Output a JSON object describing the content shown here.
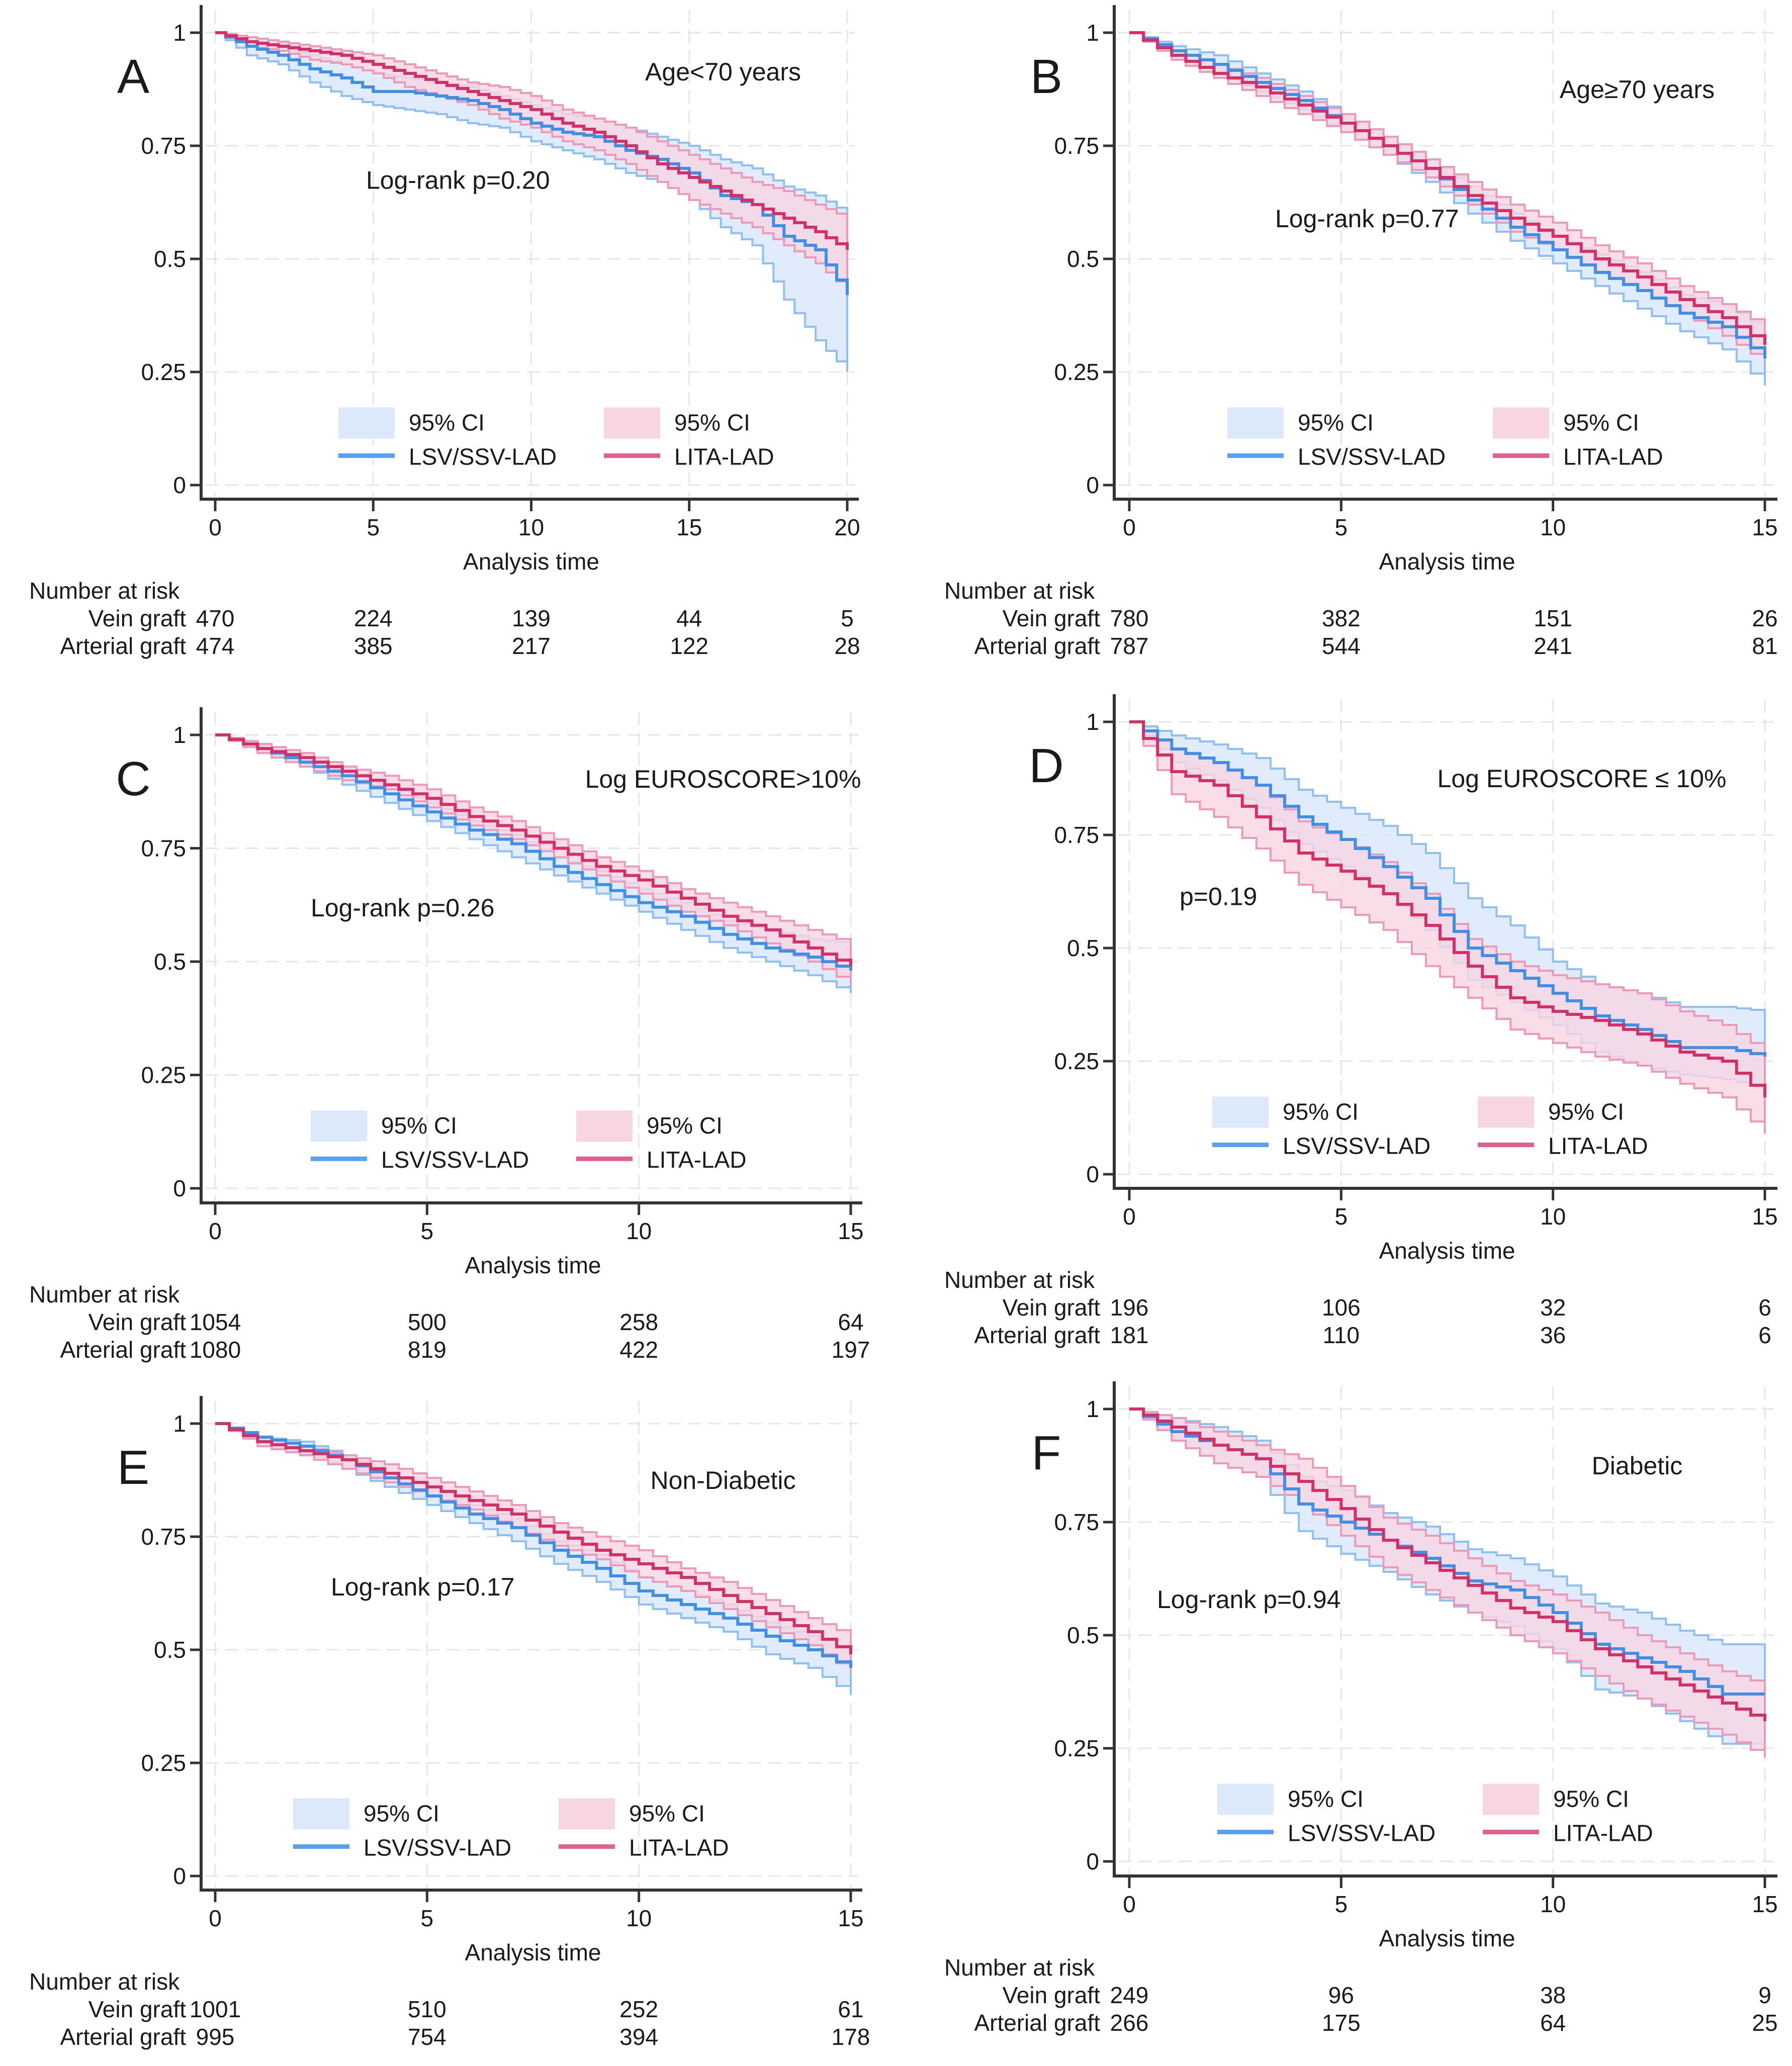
{
  "figure": {
    "colors": {
      "vein_line": "#3f8fe8",
      "vein_ci": "#dbe9fb",
      "arterial_line": "#d42f66",
      "arterial_ci": "#f7d6e2",
      "legend_arterial_line": "#e0608f"
    },
    "common": {
      "xlabel": "Analysis time",
      "risk_header": "Number at risk",
      "risk_row_labels": [
        "Vein graft",
        "Arterial graft"
      ],
      "legend": {
        "vein_ci": "95% CI",
        "arterial_ci": "95% CI",
        "vein_line": "LSV/SSV-LAD",
        "arterial_line": "LITA-LAD"
      },
      "yticks": [
        "0",
        "0.25",
        "0.5",
        "0.75",
        "1"
      ]
    }
  },
  "chart_data": [
    {
      "panel": "A",
      "type": "line",
      "title": "Age<70 years",
      "annotation": "Log-rank p=0.20",
      "xlabel": "Analysis time",
      "ylabel": "",
      "xlim": [
        0,
        20
      ],
      "ylim": [
        0,
        1
      ],
      "xticks": [
        0,
        5,
        10,
        15,
        20
      ],
      "yticks": [
        0,
        0.25,
        0.5,
        0.75,
        1
      ],
      "grid": true,
      "legend_position": "bottom-center",
      "x": [
        0,
        1,
        2,
        3,
        4,
        5,
        6,
        7,
        8,
        9,
        10,
        11,
        12,
        13,
        14,
        15,
        16,
        17,
        18,
        19,
        20
      ],
      "series": [
        {
          "name": "LSV/SSV-LAD",
          "values": [
            1,
            0.97,
            0.95,
            0.92,
            0.9,
            0.87,
            0.87,
            0.86,
            0.85,
            0.83,
            0.8,
            0.78,
            0.77,
            0.74,
            0.72,
            0.69,
            0.64,
            0.62,
            0.55,
            0.52,
            0.42
          ],
          "ci_upper": [
            1,
            0.98,
            0.97,
            0.95,
            0.93,
            0.91,
            0.9,
            0.89,
            0.88,
            0.86,
            0.84,
            0.82,
            0.81,
            0.79,
            0.77,
            0.75,
            0.72,
            0.7,
            0.66,
            0.64,
            0.6
          ],
          "ci_lower": [
            1,
            0.95,
            0.93,
            0.89,
            0.86,
            0.84,
            0.83,
            0.82,
            0.8,
            0.79,
            0.76,
            0.74,
            0.72,
            0.69,
            0.67,
            0.63,
            0.57,
            0.53,
            0.41,
            0.32,
            0.25
          ]
        },
        {
          "name": "LITA-LAD",
          "values": [
            1,
            0.98,
            0.97,
            0.96,
            0.95,
            0.93,
            0.91,
            0.89,
            0.87,
            0.85,
            0.83,
            0.8,
            0.78,
            0.75,
            0.71,
            0.68,
            0.65,
            0.62,
            0.59,
            0.56,
            0.52
          ],
          "ci_upper": [
            1,
            0.99,
            0.98,
            0.97,
            0.96,
            0.95,
            0.93,
            0.91,
            0.89,
            0.88,
            0.86,
            0.83,
            0.81,
            0.79,
            0.76,
            0.73,
            0.7,
            0.67,
            0.65,
            0.62,
            0.59
          ],
          "ci_lower": [
            1,
            0.97,
            0.96,
            0.94,
            0.93,
            0.91,
            0.88,
            0.86,
            0.84,
            0.81,
            0.79,
            0.76,
            0.74,
            0.71,
            0.67,
            0.63,
            0.6,
            0.57,
            0.53,
            0.49,
            0.43
          ]
        }
      ],
      "number_at_risk": {
        "times": [
          0,
          5,
          10,
          15,
          20
        ],
        "vein": [
          "470",
          "224",
          "139",
          "44",
          "5"
        ],
        "arterial": [
          "474",
          "385",
          "217",
          "122",
          "28"
        ]
      }
    },
    {
      "panel": "B",
      "type": "line",
      "title": "Age≥70 years",
      "annotation": "Log-rank p=0.77",
      "xlabel": "Analysis time",
      "ylabel": "",
      "xlim": [
        0,
        15
      ],
      "ylim": [
        0,
        1
      ],
      "xticks": [
        0,
        5,
        10,
        15
      ],
      "yticks": [
        0,
        0.25,
        0.5,
        0.75,
        1
      ],
      "grid": true,
      "legend_position": "bottom-center",
      "x": [
        0,
        1,
        2,
        3,
        4,
        5,
        6,
        7,
        8,
        9,
        10,
        11,
        12,
        13,
        14,
        15
      ],
      "series": [
        {
          "name": "LSV/SSV-LAD",
          "values": [
            1,
            0.96,
            0.93,
            0.89,
            0.85,
            0.8,
            0.75,
            0.7,
            0.63,
            0.57,
            0.52,
            0.47,
            0.43,
            0.38,
            0.35,
            0.28
          ],
          "ci_upper": [
            1,
            0.97,
            0.95,
            0.91,
            0.87,
            0.82,
            0.77,
            0.72,
            0.66,
            0.6,
            0.55,
            0.51,
            0.47,
            0.42,
            0.4,
            0.34
          ],
          "ci_lower": [
            1,
            0.95,
            0.91,
            0.87,
            0.83,
            0.78,
            0.73,
            0.67,
            0.6,
            0.54,
            0.49,
            0.44,
            0.39,
            0.34,
            0.3,
            0.22
          ]
        },
        {
          "name": "LITA-LAD",
          "values": [
            1,
            0.95,
            0.91,
            0.88,
            0.84,
            0.8,
            0.75,
            0.7,
            0.64,
            0.59,
            0.55,
            0.5,
            0.46,
            0.41,
            0.37,
            0.31
          ],
          "ci_upper": [
            1,
            0.96,
            0.93,
            0.9,
            0.86,
            0.82,
            0.77,
            0.72,
            0.67,
            0.62,
            0.58,
            0.53,
            0.49,
            0.44,
            0.4,
            0.35
          ],
          "ci_lower": [
            1,
            0.94,
            0.9,
            0.86,
            0.82,
            0.78,
            0.73,
            0.68,
            0.62,
            0.56,
            0.52,
            0.47,
            0.43,
            0.38,
            0.33,
            0.27
          ]
        }
      ],
      "number_at_risk": {
        "times": [
          0,
          5,
          10,
          15
        ],
        "vein": [
          "780",
          "382",
          "151",
          "26"
        ],
        "arterial": [
          "787",
          "544",
          "241",
          "81"
        ]
      }
    },
    {
      "panel": "C",
      "type": "line",
      "title": "Log EUROSCORE>10%",
      "annotation": "Log-rank p=0.26",
      "xlabel": "Analysis time",
      "ylabel": "",
      "xlim": [
        0,
        15
      ],
      "ylim": [
        0,
        1
      ],
      "xticks": [
        0,
        5,
        10,
        15
      ],
      "yticks": [
        0,
        0.25,
        0.5,
        0.75,
        1
      ],
      "grid": true,
      "legend_position": "bottom-center",
      "x": [
        0,
        1,
        2,
        3,
        4,
        5,
        6,
        7,
        8,
        9,
        10,
        11,
        12,
        13,
        14,
        15
      ],
      "series": [
        {
          "name": "LSV/SSV-LAD",
          "values": [
            1,
            0.97,
            0.94,
            0.91,
            0.87,
            0.83,
            0.79,
            0.76,
            0.71,
            0.67,
            0.63,
            0.6,
            0.56,
            0.53,
            0.51,
            0.48
          ],
          "ci_upper": [
            1,
            0.98,
            0.95,
            0.92,
            0.89,
            0.85,
            0.81,
            0.78,
            0.73,
            0.7,
            0.66,
            0.63,
            0.59,
            0.57,
            0.55,
            0.54
          ],
          "ci_lower": [
            1,
            0.96,
            0.93,
            0.89,
            0.85,
            0.81,
            0.77,
            0.73,
            0.69,
            0.65,
            0.61,
            0.57,
            0.53,
            0.5,
            0.47,
            0.43
          ]
        },
        {
          "name": "LITA-LAD",
          "values": [
            1,
            0.97,
            0.95,
            0.92,
            0.89,
            0.86,
            0.82,
            0.79,
            0.75,
            0.71,
            0.68,
            0.64,
            0.6,
            0.57,
            0.53,
            0.49
          ],
          "ci_upper": [
            1,
            0.98,
            0.96,
            0.93,
            0.91,
            0.88,
            0.84,
            0.81,
            0.77,
            0.73,
            0.7,
            0.66,
            0.63,
            0.6,
            0.57,
            0.54
          ],
          "ci_lower": [
            1,
            0.96,
            0.93,
            0.9,
            0.88,
            0.84,
            0.8,
            0.77,
            0.73,
            0.69,
            0.65,
            0.61,
            0.58,
            0.54,
            0.5,
            0.45
          ]
        }
      ],
      "number_at_risk": {
        "times": [
          0,
          5,
          10,
          15
        ],
        "vein": [
          "1054",
          "500",
          "258",
          "64"
        ],
        "arterial": [
          "1080",
          "819",
          "422",
          "197"
        ]
      }
    },
    {
      "panel": "D",
      "type": "line",
      "title": "Log EUROSCORE ≤ 10%",
      "annotation": "p=0.19",
      "xlabel": "Analysis time",
      "ylabel": "",
      "xlim": [
        0,
        15
      ],
      "ylim": [
        0,
        1
      ],
      "xticks": [
        0,
        5,
        10,
        15
      ],
      "yticks": [
        0,
        0.25,
        0.5,
        0.75,
        1
      ],
      "grid": true,
      "legend_position": "bottom-center",
      "x": [
        0,
        1,
        2,
        3,
        4,
        5,
        6,
        7,
        8,
        9,
        10,
        11,
        12,
        13,
        14,
        15
      ],
      "series": [
        {
          "name": "LSV/SSV-LAD",
          "values": [
            1,
            0.94,
            0.91,
            0.86,
            0.79,
            0.74,
            0.68,
            0.61,
            0.5,
            0.45,
            0.4,
            0.35,
            0.32,
            0.28,
            0.28,
            0.26
          ],
          "ci_upper": [
            1,
            0.97,
            0.95,
            0.92,
            0.85,
            0.81,
            0.77,
            0.71,
            0.61,
            0.55,
            0.47,
            0.42,
            0.4,
            0.37,
            0.37,
            0.36
          ],
          "ci_lower": [
            1,
            0.91,
            0.87,
            0.81,
            0.73,
            0.68,
            0.62,
            0.54,
            0.43,
            0.38,
            0.33,
            0.27,
            0.24,
            0.22,
            0.21,
            0.19
          ]
        },
        {
          "name": "LITA-LAD",
          "values": [
            1,
            0.89,
            0.86,
            0.79,
            0.71,
            0.67,
            0.62,
            0.55,
            0.46,
            0.39,
            0.36,
            0.34,
            0.31,
            0.27,
            0.25,
            0.17
          ],
          "ci_upper": [
            1,
            0.94,
            0.91,
            0.86,
            0.78,
            0.74,
            0.69,
            0.62,
            0.52,
            0.47,
            0.44,
            0.42,
            0.4,
            0.36,
            0.33,
            0.27
          ],
          "ci_lower": [
            1,
            0.84,
            0.79,
            0.72,
            0.64,
            0.59,
            0.54,
            0.46,
            0.39,
            0.32,
            0.29,
            0.26,
            0.24,
            0.2,
            0.17,
            0.09
          ]
        }
      ],
      "number_at_risk": {
        "times": [
          0,
          5,
          10,
          15
        ],
        "vein": [
          "196",
          "106",
          "32",
          "6"
        ],
        "arterial": [
          "181",
          "110",
          "36",
          "6"
        ]
      }
    },
    {
      "panel": "E",
      "type": "line",
      "title": "Non-Diabetic",
      "annotation": "Log-rank p=0.17",
      "xlabel": "Analysis time",
      "ylabel": "",
      "xlim": [
        0,
        15
      ],
      "ylim": [
        0,
        1
      ],
      "xticks": [
        0,
        5,
        10,
        15
      ],
      "yticks": [
        0,
        0.25,
        0.5,
        0.75,
        1
      ],
      "grid": true,
      "legend_position": "bottom-center",
      "x": [
        0,
        1,
        2,
        3,
        4,
        5,
        6,
        7,
        8,
        9,
        10,
        11,
        12,
        13,
        14,
        15
      ],
      "series": [
        {
          "name": "LSV/SSV-LAD",
          "values": [
            1,
            0.97,
            0.95,
            0.92,
            0.88,
            0.84,
            0.8,
            0.77,
            0.72,
            0.68,
            0.63,
            0.6,
            0.57,
            0.53,
            0.5,
            0.46
          ],
          "ci_upper": [
            1,
            0.97,
            0.96,
            0.93,
            0.89,
            0.86,
            0.82,
            0.79,
            0.74,
            0.71,
            0.66,
            0.63,
            0.6,
            0.56,
            0.53,
            0.5
          ],
          "ci_lower": [
            1,
            0.96,
            0.94,
            0.9,
            0.86,
            0.82,
            0.78,
            0.74,
            0.69,
            0.65,
            0.6,
            0.57,
            0.54,
            0.49,
            0.46,
            0.4
          ]
        },
        {
          "name": "LITA-LAD",
          "values": [
            1,
            0.96,
            0.94,
            0.92,
            0.89,
            0.86,
            0.83,
            0.8,
            0.76,
            0.72,
            0.69,
            0.66,
            0.62,
            0.58,
            0.54,
            0.49
          ],
          "ci_upper": [
            1,
            0.97,
            0.95,
            0.93,
            0.91,
            0.88,
            0.85,
            0.82,
            0.78,
            0.75,
            0.72,
            0.68,
            0.65,
            0.61,
            0.57,
            0.53
          ],
          "ci_lower": [
            1,
            0.95,
            0.93,
            0.9,
            0.87,
            0.84,
            0.81,
            0.77,
            0.73,
            0.7,
            0.66,
            0.63,
            0.59,
            0.55,
            0.51,
            0.45
          ]
        }
      ],
      "number_at_risk": {
        "times": [
          0,
          5,
          10,
          15
        ],
        "vein": [
          "1001",
          "510",
          "252",
          "61"
        ],
        "arterial": [
          "995",
          "754",
          "394",
          "178"
        ]
      }
    },
    {
      "panel": "F",
      "type": "line",
      "title": "Diabetic",
      "annotation": "Log-rank p=0.94",
      "xlabel": "Analysis time",
      "ylabel": "",
      "xlim": [
        0,
        15
      ],
      "ylim": [
        0,
        1
      ],
      "xticks": [
        0,
        5,
        10,
        15
      ],
      "yticks": [
        0,
        0.25,
        0.5,
        0.75,
        1
      ],
      "grid": true,
      "legend_position": "bottom-center",
      "x": [
        0,
        1,
        2,
        3,
        4,
        5,
        6,
        7,
        8,
        9,
        10,
        11,
        12,
        13,
        14,
        15
      ],
      "series": [
        {
          "name": "LSV/SSV-LAD",
          "values": [
            1,
            0.95,
            0.92,
            0.89,
            0.79,
            0.75,
            0.71,
            0.67,
            0.62,
            0.6,
            0.55,
            0.48,
            0.45,
            0.42,
            0.37,
            0.37
          ],
          "ci_upper": [
            1,
            0.98,
            0.96,
            0.93,
            0.85,
            0.82,
            0.77,
            0.74,
            0.69,
            0.67,
            0.63,
            0.57,
            0.55,
            0.51,
            0.48,
            0.48
          ],
          "ci_lower": [
            1,
            0.93,
            0.88,
            0.85,
            0.73,
            0.68,
            0.64,
            0.59,
            0.55,
            0.52,
            0.47,
            0.38,
            0.36,
            0.31,
            0.26,
            0.26
          ]
        },
        {
          "name": "LITA-LAD",
          "values": [
            1,
            0.96,
            0.92,
            0.89,
            0.84,
            0.78,
            0.71,
            0.66,
            0.61,
            0.56,
            0.53,
            0.47,
            0.43,
            0.39,
            0.35,
            0.31
          ],
          "ci_upper": [
            1,
            0.98,
            0.95,
            0.92,
            0.89,
            0.83,
            0.76,
            0.72,
            0.67,
            0.62,
            0.59,
            0.55,
            0.5,
            0.46,
            0.42,
            0.39
          ],
          "ci_lower": [
            1,
            0.93,
            0.88,
            0.85,
            0.79,
            0.72,
            0.65,
            0.6,
            0.55,
            0.5,
            0.46,
            0.41,
            0.36,
            0.32,
            0.28,
            0.23
          ]
        }
      ],
      "number_at_risk": {
        "times": [
          0,
          5,
          10,
          15
        ],
        "vein": [
          "249",
          "96",
          "38",
          "9"
        ],
        "arterial": [
          "266",
          "175",
          "64",
          "25"
        ]
      }
    }
  ]
}
